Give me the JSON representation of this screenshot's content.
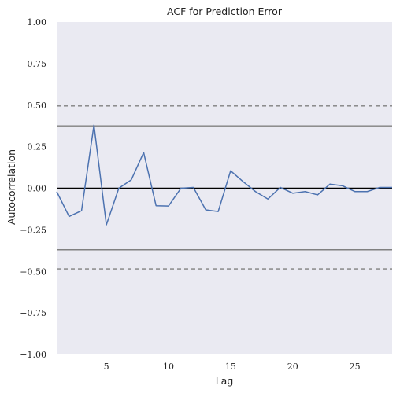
{
  "chart_data": {
    "type": "line",
    "title": "ACF for Prediction Error",
    "xlabel": "Lag",
    "ylabel": "Autocorrelation",
    "xlim": [
      1,
      28
    ],
    "ylim": [
      -1.0,
      1.0
    ],
    "grid": false,
    "x_ticks": [
      5,
      10,
      15,
      20,
      25
    ],
    "y_ticks": [
      1.0,
      0.75,
      0.5,
      0.25,
      0.0,
      -0.25,
      -0.5,
      -0.75,
      -1.0
    ],
    "x_tick_labels": [
      "5",
      "10",
      "15",
      "20",
      "25"
    ],
    "y_tick_labels": [
      "1.00",
      "0.75",
      "0.50",
      "0.25",
      "0.00",
      "−0.25",
      "−0.50",
      "−0.75",
      "−1.00"
    ],
    "series": [
      {
        "color": "#4c72b0",
        "x": [
          1,
          2,
          3,
          4,
          5,
          6,
          7,
          8,
          9,
          10,
          11,
          12,
          13,
          14,
          15,
          16,
          17,
          18,
          19,
          20,
          21,
          22,
          23,
          24,
          25,
          26,
          27,
          28
        ],
        "values": [
          -0.02,
          -0.17,
          -0.135,
          0.38,
          -0.22,
          0.0,
          0.05,
          0.215,
          -0.105,
          -0.107,
          0.0,
          0.005,
          -0.13,
          -0.14,
          0.105,
          0.04,
          -0.02,
          -0.065,
          0.005,
          -0.03,
          -0.02,
          -0.04,
          0.025,
          0.015,
          -0.02,
          -0.02,
          0.005,
          0.005
        ]
      }
    ],
    "reference_lines": [
      {
        "y": 0.0,
        "style": "solid",
        "color": "#000000"
      },
      {
        "y": 0.375,
        "style": "solid",
        "color": "#808080"
      },
      {
        "y": -0.37,
        "style": "solid",
        "color": "#808080"
      },
      {
        "y": 0.495,
        "style": "dashed",
        "color": "#808080"
      },
      {
        "y": -0.485,
        "style": "dashed",
        "color": "#808080"
      }
    ],
    "background_color": "#eaeaf2"
  }
}
